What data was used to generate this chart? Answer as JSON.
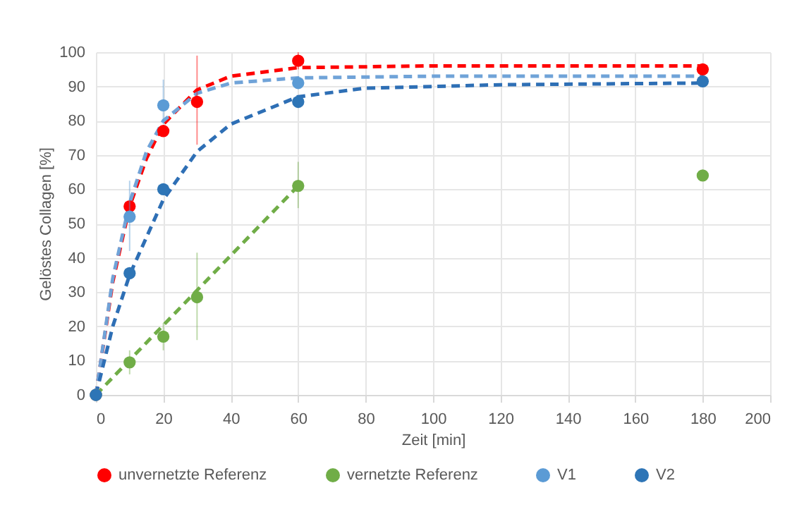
{
  "chart_data": {
    "type": "scatter",
    "xlabel": "Zeit [min]",
    "ylabel": "Gelöstes Collagen [%]",
    "xlim": [
      0,
      200
    ],
    "xticks": [
      0,
      20,
      40,
      60,
      80,
      100,
      120,
      140,
      160,
      180,
      200
    ],
    "ylim": [
      0,
      100
    ],
    "yticks": [
      0,
      10,
      20,
      30,
      40,
      50,
      60,
      70,
      80,
      90,
      100
    ],
    "grid": true,
    "legend": "bottom",
    "marker": "circle",
    "series": [
      {
        "type": "line",
        "marker": "none",
        "line_style": "dashed",
        "color": "#ff0000",
        "x": [
          0,
          5,
          10,
          15,
          20,
          30,
          40,
          60,
          100,
          180
        ],
        "values": [
          0,
          33,
          55,
          69,
          79,
          89,
          93,
          95.5,
          96,
          96
        ]
      },
      {
        "type": "line",
        "marker": "none",
        "line_style": "dashed",
        "color": "#70a3d8",
        "x": [
          0,
          5,
          10,
          15,
          20,
          30,
          40,
          60,
          100,
          180
        ],
        "values": [
          0,
          34,
          56,
          71,
          80,
          88,
          91,
          92.5,
          93,
          93
        ]
      },
      {
        "type": "line",
        "marker": "none",
        "line_style": "dashed",
        "color": "#2e6fb5",
        "x": [
          0,
          5,
          10,
          20,
          30,
          40,
          60,
          80,
          120,
          180
        ],
        "values": [
          0,
          20,
          35,
          57,
          71,
          79,
          87,
          89.5,
          90.5,
          91
        ]
      },
      {
        "type": "line",
        "marker": "none",
        "line_style": "dashed",
        "color": "#70ad47",
        "x": [
          0,
          60
        ],
        "values": [
          0,
          61
        ]
      },
      {
        "name": "unvernetzte Referenz",
        "color": "#ff0000",
        "x": [
          0,
          10,
          20,
          30,
          60,
          180
        ],
        "values": [
          0,
          55,
          77,
          85.5,
          97.5,
          95
        ],
        "errors": [
          null,
          null,
          null,
          [
            73,
            99
          ],
          [
            95,
            100
          ],
          null
        ]
      },
      {
        "name": "vernetzte Referenz",
        "color": "#70ad47",
        "x": [
          0,
          10,
          20,
          30,
          60,
          180
        ],
        "values": [
          0,
          9.5,
          17,
          28.5,
          61,
          64
        ],
        "errors": [
          null,
          [
            6,
            13
          ],
          [
            13,
            21
          ],
          [
            16,
            41.5
          ],
          [
            54.5,
            68
          ],
          null
        ]
      },
      {
        "name": "V1",
        "color": "#5b9bd5",
        "x": [
          0,
          10,
          20,
          60
        ],
        "values": [
          0,
          52,
          84.5,
          91
        ],
        "errors": [
          null,
          [
            42,
            62.5
          ],
          [
            79,
            92
          ],
          null
        ]
      },
      {
        "name": "V2",
        "color": "#2e75b6",
        "x": [
          0,
          10,
          20,
          60,
          180
        ],
        "values": [
          0,
          35.5,
          60,
          85.5,
          91.5
        ]
      }
    ]
  }
}
